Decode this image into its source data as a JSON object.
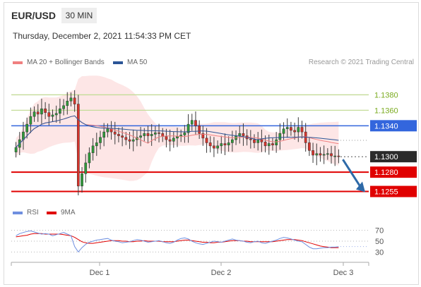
{
  "header": {
    "symbol": "EUR/USD",
    "timeframe": "30 MIN",
    "timestamp": "Thursday, December 2, 2021 11:54:33 PM CET"
  },
  "legend": {
    "ma20": "MA 20 + Bollinger Bands",
    "ma50": "MA 50",
    "credit": "Research © 2021 Trading Central",
    "rsi": "RSI",
    "rsi_ma": "9MA"
  },
  "colors": {
    "ma20": "#f08080",
    "ma50": "#2b5597",
    "bands": "#fde2e2",
    "resistance": "#7aab1f",
    "pivot": "#3366dd",
    "support": "#e00000",
    "last": "#2b2b2b",
    "rsi": "#6f8fe0",
    "rsi_ma": "#e00000"
  },
  "chart_data": [
    {
      "type": "candlestick",
      "title": "EUR/USD 30 MIN",
      "ylim": [
        1.124,
        1.1395
      ],
      "x_ticks": [
        "Dec 1",
        "Dec 2",
        "Dec 3"
      ],
      "levels": [
        {
          "value": 1.138,
          "label": "1.1380",
          "kind": "resistance"
        },
        {
          "value": 1.136,
          "label": "1.1360",
          "kind": "resistance"
        },
        {
          "value": 1.134,
          "label": "1.1340",
          "kind": "pivot"
        },
        {
          "value": 1.13,
          "label": "1.1300",
          "kind": "last"
        },
        {
          "value": 1.128,
          "label": "1.1280",
          "kind": "support"
        },
        {
          "value": 1.1255,
          "label": "1.1255",
          "kind": "support"
        }
      ],
      "forecast_arrow": {
        "from": 1.13,
        "to": 1.1255,
        "direction": "down"
      },
      "close": [
        1.1312,
        1.1322,
        1.1332,
        1.1342,
        1.1352,
        1.1358,
        1.1355,
        1.1362,
        1.1357,
        1.1352,
        1.1354,
        1.1356,
        1.1362,
        1.1366,
        1.1372,
        1.1376,
        1.1368,
        1.1262,
        1.1278,
        1.1292,
        1.1305,
        1.1314,
        1.1318,
        1.1325,
        1.1332,
        1.1336,
        1.1332,
        1.1329,
        1.1327,
        1.1325,
        1.1322,
        1.132,
        1.1322,
        1.1325,
        1.1327,
        1.133,
        1.1327,
        1.1329,
        1.1331,
        1.133,
        1.1326,
        1.1322,
        1.132,
        1.1324,
        1.1326,
        1.1328,
        1.1331,
        1.1342,
        1.1347,
        1.134,
        1.133,
        1.1324,
        1.1318,
        1.1314,
        1.1311,
        1.1314,
        1.1317,
        1.1315,
        1.1318,
        1.1322,
        1.1327,
        1.133,
        1.1327,
        1.1323,
        1.1322,
        1.1318,
        1.1322,
        1.1319,
        1.1314,
        1.1317,
        1.1315,
        1.1322,
        1.133,
        1.1336,
        1.1338,
        1.1334,
        1.1332,
        1.1338,
        1.1332,
        1.1318,
        1.1308,
        1.1302,
        1.1304,
        1.1302,
        1.1303,
        1.1304,
        1.1301,
        1.1301,
        1.13
      ],
      "rsi": [
        60,
        64,
        66,
        68,
        69,
        67,
        65,
        63,
        64,
        63,
        60,
        62,
        64,
        66,
        63,
        60,
        40,
        30,
        38,
        44,
        48,
        50,
        52,
        53,
        54,
        55,
        52,
        50,
        49,
        47,
        48,
        49,
        51,
        53,
        52,
        50,
        48,
        49,
        50,
        51,
        49,
        47,
        46,
        48,
        52,
        55,
        56,
        54,
        50,
        47,
        45,
        44,
        46,
        48,
        50,
        49,
        48,
        50,
        52,
        54,
        52,
        51,
        50,
        48,
        47,
        49,
        50,
        47,
        46,
        48,
        50,
        52,
        55,
        57,
        56,
        54,
        52,
        50,
        49,
        44,
        39,
        36,
        36,
        37,
        38,
        38,
        39,
        39,
        40
      ],
      "rsi_ma": [
        58,
        59,
        60,
        61,
        63,
        64,
        64,
        64,
        63,
        63,
        63,
        63,
        63,
        62,
        61,
        60,
        57,
        53,
        49,
        47,
        46,
        46,
        47,
        48,
        49,
        50,
        51,
        51,
        51,
        50,
        50,
        49,
        49,
        50,
        50,
        51,
        50,
        50,
        50,
        50,
        49,
        49,
        49,
        49,
        50,
        51,
        52,
        52,
        51,
        50,
        49,
        48,
        48,
        47,
        47,
        48,
        48,
        49,
        50,
        51,
        51,
        51,
        50,
        50,
        49,
        49,
        49,
        49,
        49,
        49,
        49,
        50,
        51,
        52,
        53,
        53,
        53,
        52,
        51,
        49,
        47,
        45,
        43,
        41,
        40,
        39,
        38,
        38,
        38
      ],
      "rsi_levels": [
        70,
        50,
        30
      ]
    }
  ]
}
